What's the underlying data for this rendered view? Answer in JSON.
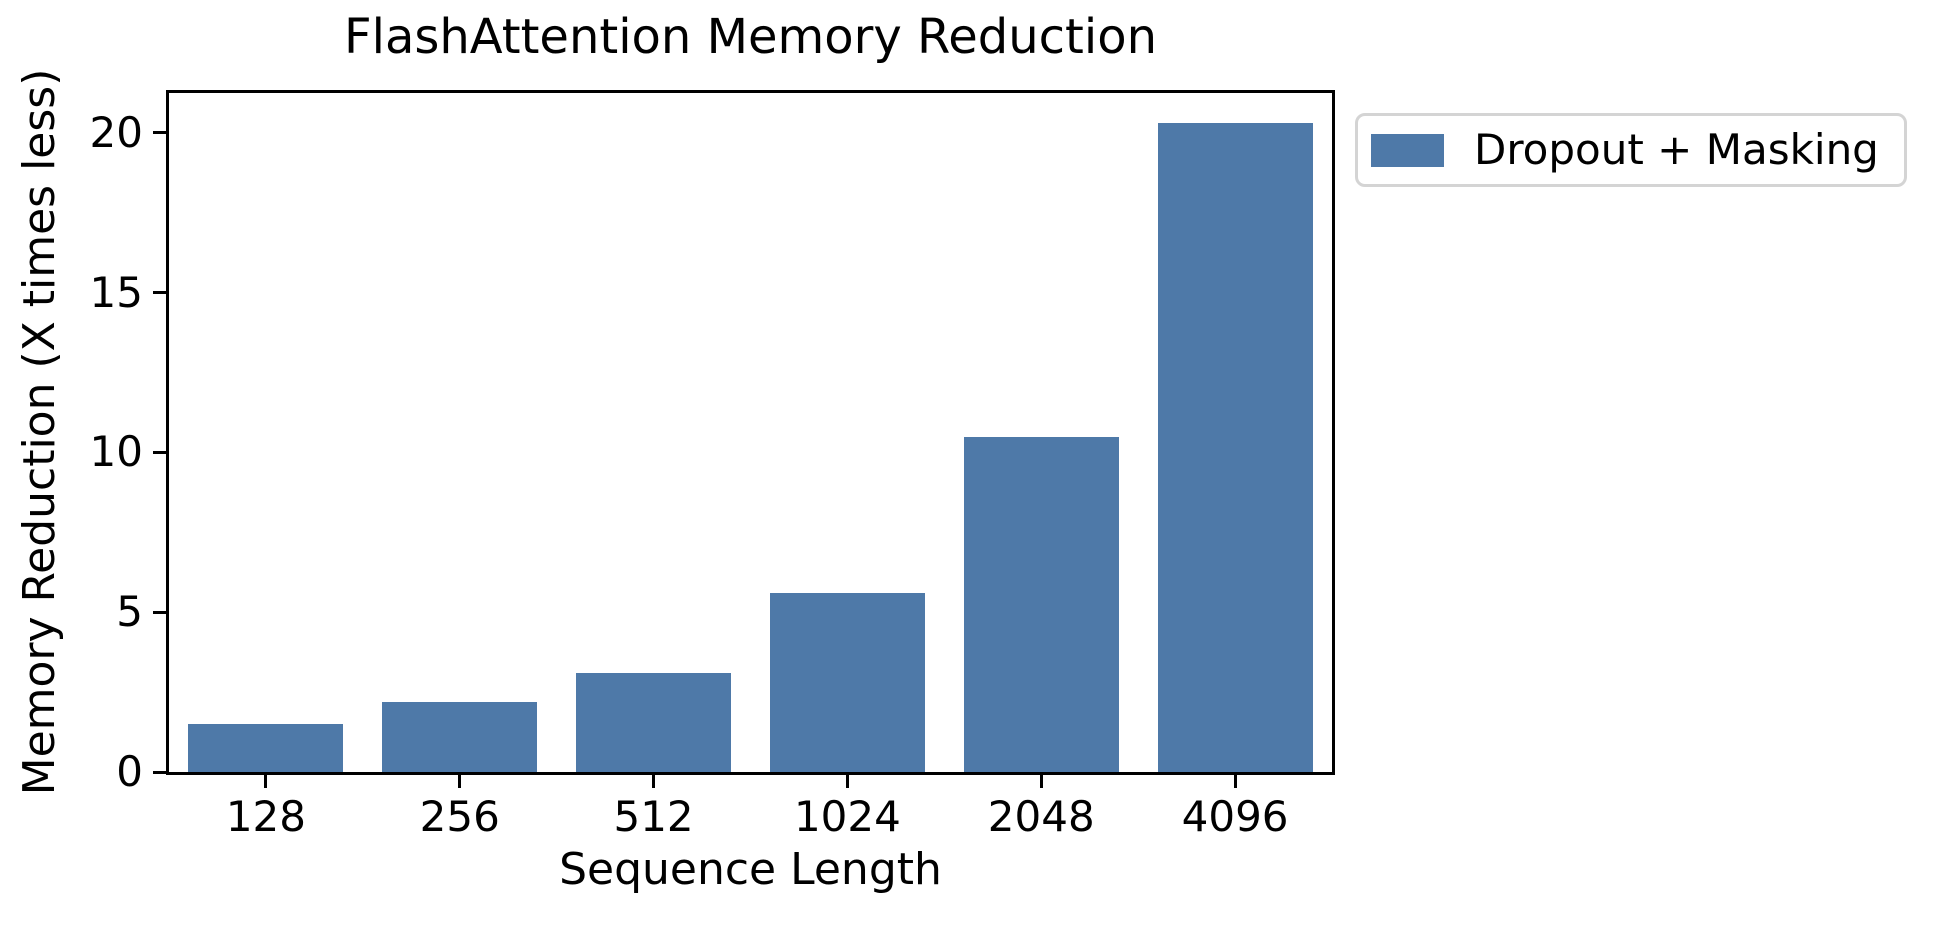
{
  "chart_data": {
    "type": "bar",
    "title": "FlashAttention Memory Reduction",
    "xlabel": "Sequence Length",
    "ylabel": "Memory Reduction (X times less)",
    "categories": [
      "128",
      "256",
      "512",
      "1024",
      "2048",
      "4096"
    ],
    "series": [
      {
        "name": "Dropout + Masking",
        "values": [
          1.5,
          2.2,
          3.1,
          5.6,
          10.5,
          20.3
        ]
      }
    ],
    "yticks": [
      0,
      5,
      10,
      15,
      20
    ],
    "ylim": [
      0,
      21.25
    ],
    "bar_color": "#4e79a8",
    "spine_color": "#000000",
    "text_color": "#000000",
    "legend_border_color": "#d4d4d4",
    "background": "#ffffff",
    "grid": false,
    "legend_position": "outside-upper-right",
    "bar_width_fraction": 0.8
  }
}
